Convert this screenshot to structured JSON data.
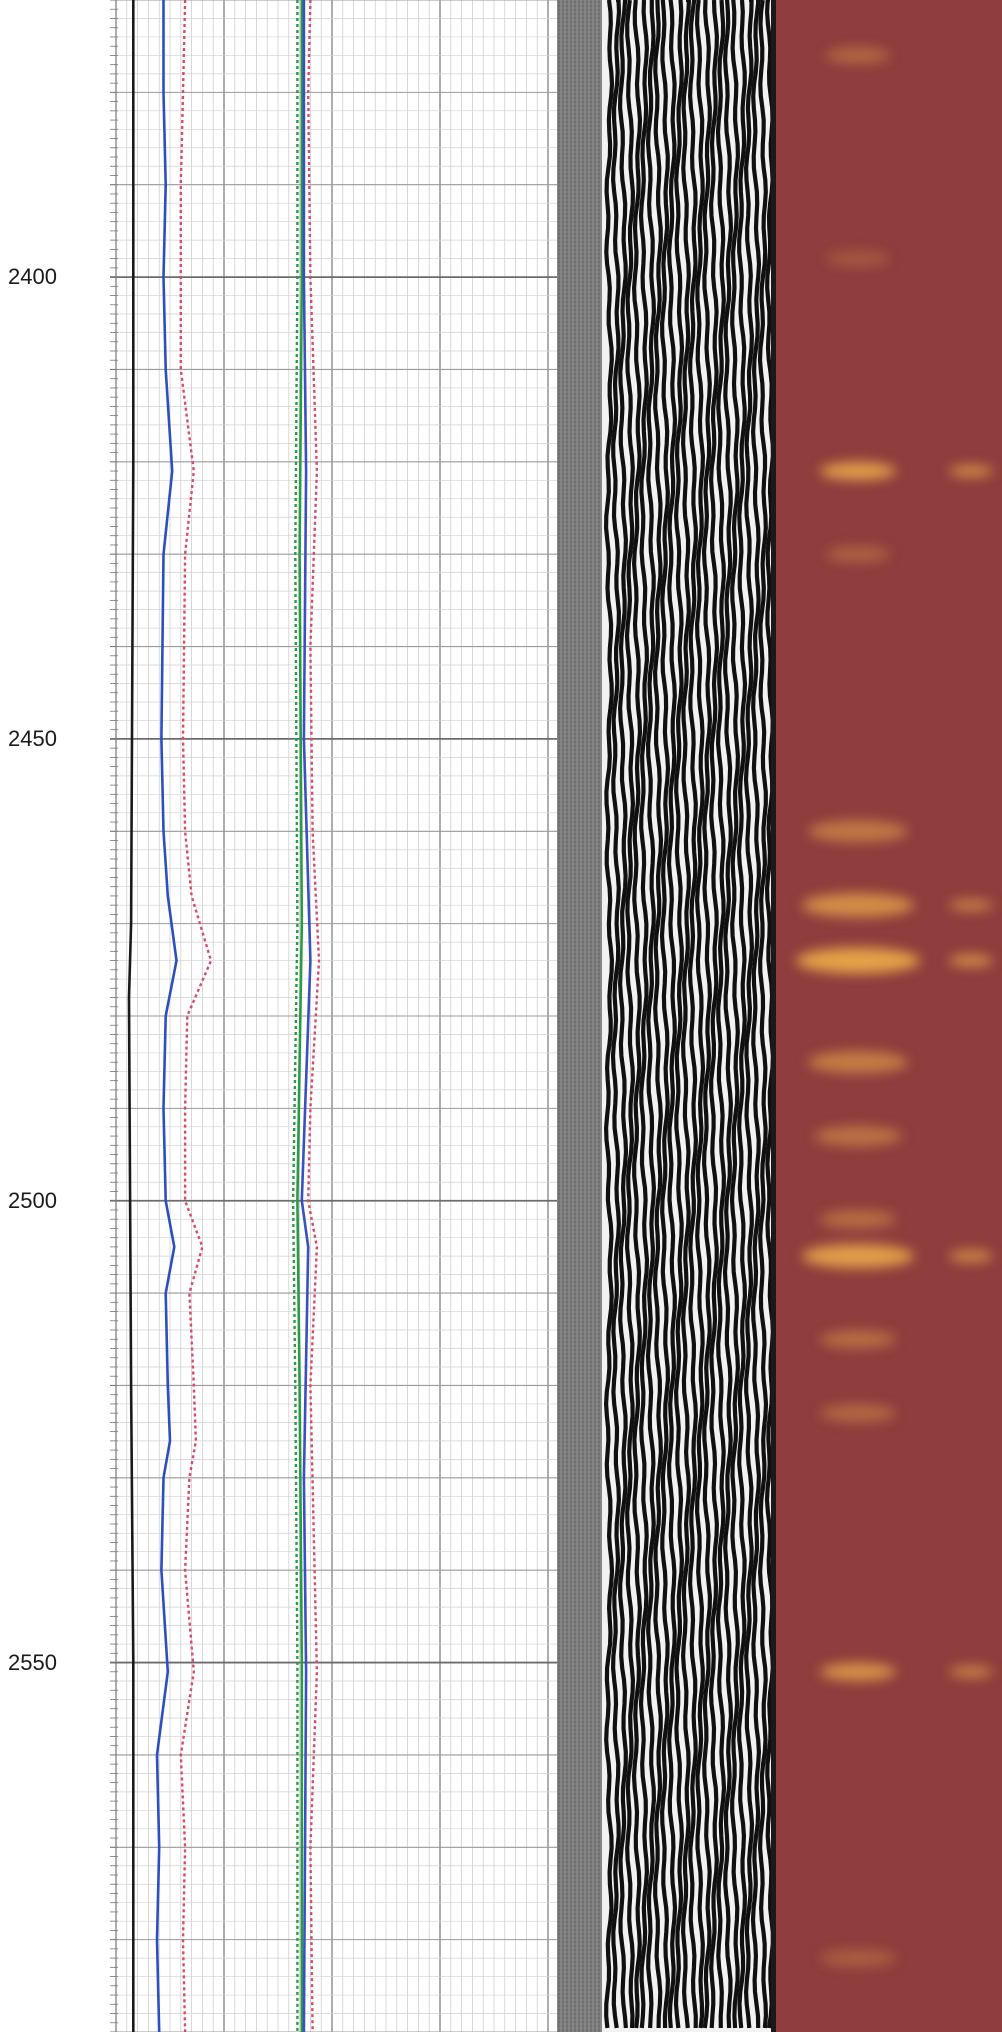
{
  "chart_data": {
    "type": "line",
    "title": "",
    "orientation": "vertical-depth",
    "depth_axis": {
      "label": "",
      "range": [
        2370,
        2590
      ],
      "ticks": [
        {
          "value": 2400,
          "label": "2400"
        },
        {
          "value": 2450,
          "label": "2450"
        },
        {
          "value": 2500,
          "label": "2500"
        },
        {
          "value": 2550,
          "label": "2550"
        }
      ]
    },
    "grid": true,
    "tracks": [
      {
        "kind": "curves",
        "xlim": [
          0,
          100
        ],
        "series": [
          {
            "color": "#1a1a1a",
            "style": "solid",
            "points": [
              [
                2370,
                4
              ],
              [
                2420,
                4
              ],
              [
                2470,
                3.5
              ],
              [
                2478,
                3
              ],
              [
                2520,
                3.5
              ],
              [
                2550,
                4
              ],
              [
                2590,
                4
              ]
            ]
          },
          {
            "color": "#2b4fbf",
            "style": "solid",
            "points": [
              [
                2370,
                11
              ],
              [
                2380,
                11
              ],
              [
                2390,
                11.5
              ],
              [
                2400,
                11
              ],
              [
                2410,
                11.5
              ],
              [
                2421,
                13
              ],
              [
                2430,
                11
              ],
              [
                2450,
                10.5
              ],
              [
                2460,
                11
              ],
              [
                2467,
                12
              ],
              [
                2474,
                14
              ],
              [
                2480,
                11.5
              ],
              [
                2490,
                11
              ],
              [
                2500,
                11.5
              ],
              [
                2505,
                13.5
              ],
              [
                2510,
                11.5
              ],
              [
                2520,
                12
              ],
              [
                2526,
                12.5
              ],
              [
                2530,
                11
              ],
              [
                2540,
                10.5
              ],
              [
                2551,
                12
              ],
              [
                2560,
                9.5
              ],
              [
                2570,
                10
              ],
              [
                2580,
                9.5
              ],
              [
                2590,
                10
              ]
            ]
          },
          {
            "color": "#d94a6a",
            "style": "dotted",
            "points": [
              [
                2370,
                16
              ],
              [
                2380,
                15.5
              ],
              [
                2390,
                15
              ],
              [
                2400,
                15
              ],
              [
                2410,
                15
              ],
              [
                2421,
                18
              ],
              [
                2430,
                16
              ],
              [
                2450,
                15.5
              ],
              [
                2460,
                16
              ],
              [
                2467,
                17.5
              ],
              [
                2474,
                22
              ],
              [
                2480,
                16.5
              ],
              [
                2490,
                16
              ],
              [
                2500,
                16
              ],
              [
                2505,
                20
              ],
              [
                2510,
                17
              ],
              [
                2520,
                18
              ],
              [
                2526,
                18.5
              ],
              [
                2530,
                17
              ],
              [
                2540,
                16
              ],
              [
                2551,
                18
              ],
              [
                2560,
                15
              ],
              [
                2570,
                16
              ],
              [
                2580,
                15.5
              ],
              [
                2590,
                16
              ]
            ]
          },
          {
            "color": "#2a9a45",
            "style": "solid",
            "points": [
              [
                2370,
                43
              ],
              [
                2400,
                43
              ],
              [
                2430,
                42.5
              ],
              [
                2470,
                43
              ],
              [
                2500,
                42
              ],
              [
                2520,
                42.5
              ],
              [
                2550,
                43
              ],
              [
                2590,
                43
              ]
            ]
          },
          {
            "color": "#2a9a45",
            "style": "dotted",
            "points": [
              [
                2370,
                42
              ],
              [
                2400,
                42
              ],
              [
                2430,
                41.5
              ],
              [
                2470,
                42
              ],
              [
                2500,
                41
              ],
              [
                2520,
                41.5
              ],
              [
                2550,
                42
              ],
              [
                2590,
                42
              ]
            ]
          },
          {
            "color": "#3a4fc0",
            "style": "solid",
            "points": [
              [
                2370,
                43.5
              ],
              [
                2400,
                43.5
              ],
              [
                2421,
                44
              ],
              [
                2450,
                43.5
              ],
              [
                2474,
                45
              ],
              [
                2500,
                43
              ],
              [
                2505,
                44.5
              ],
              [
                2530,
                43.5
              ],
              [
                2551,
                44
              ],
              [
                2590,
                43.5
              ]
            ]
          },
          {
            "color": "#d94a6a",
            "style": "dotted",
            "points": [
              [
                2370,
                45
              ],
              [
                2380,
                44.5
              ],
              [
                2400,
                45
              ],
              [
                2421,
                46.5
              ],
              [
                2440,
                45
              ],
              [
                2460,
                45.5
              ],
              [
                2474,
                47
              ],
              [
                2490,
                45
              ],
              [
                2500,
                44.5
              ],
              [
                2505,
                46.5
              ],
              [
                2520,
                45
              ],
              [
                2551,
                46.5
              ],
              [
                2570,
                45
              ],
              [
                2590,
                45.5
              ]
            ]
          }
        ]
      },
      {
        "kind": "waveform",
        "colors": {
          "background": "#6f6f6f",
          "dark": "#101010",
          "light": "#f2f2f2"
        }
      },
      {
        "kind": "image",
        "colors": {
          "base": "#8f3d3d",
          "bright": "#e8a84a"
        },
        "features": [
          {
            "depth": 2376,
            "width": 0.2,
            "intensity": 0.4
          },
          {
            "depth": 2398,
            "width": 0.2,
            "intensity": 0.25
          },
          {
            "depth": 2421,
            "width": 0.3,
            "intensity": 0.9
          },
          {
            "depth": 2430,
            "width": 0.2,
            "intensity": 0.35
          },
          {
            "depth": 2460,
            "width": 0.5,
            "intensity": 0.55
          },
          {
            "depth": 2468,
            "width": 0.6,
            "intensity": 0.75
          },
          {
            "depth": 2474,
            "width": 0.7,
            "intensity": 0.95
          },
          {
            "depth": 2485,
            "width": 0.5,
            "intensity": 0.6
          },
          {
            "depth": 2493,
            "width": 0.4,
            "intensity": 0.5
          },
          {
            "depth": 2502,
            "width": 0.3,
            "intensity": 0.45
          },
          {
            "depth": 2506,
            "width": 0.6,
            "intensity": 0.9
          },
          {
            "depth": 2515,
            "width": 0.3,
            "intensity": 0.45
          },
          {
            "depth": 2523,
            "width": 0.3,
            "intensity": 0.4
          },
          {
            "depth": 2551,
            "width": 0.3,
            "intensity": 0.8
          },
          {
            "depth": 2582,
            "width": 0.3,
            "intensity": 0.3
          }
        ]
      }
    ]
  }
}
